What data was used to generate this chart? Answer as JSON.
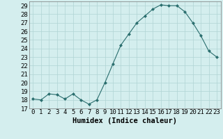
{
  "x": [
    0,
    1,
    2,
    3,
    4,
    5,
    6,
    7,
    8,
    9,
    10,
    11,
    12,
    13,
    14,
    15,
    16,
    17,
    18,
    19,
    20,
    21,
    22,
    23
  ],
  "y": [
    18.1,
    18.0,
    18.7,
    18.6,
    18.1,
    18.7,
    18.0,
    17.5,
    18.0,
    20.0,
    22.2,
    24.4,
    25.7,
    27.0,
    27.8,
    28.6,
    29.1,
    29.0,
    29.0,
    28.3,
    27.0,
    25.5,
    23.7,
    23.0
  ],
  "line_color": "#2a6e6e",
  "marker": "D",
  "marker_size": 2,
  "bg_color": "#d4eeee",
  "grid_color": "#b0d4d4",
  "xlabel": "Humidex (Indice chaleur)",
  "ylim": [
    17,
    29.5
  ],
  "xlim": [
    -0.5,
    23.5
  ],
  "yticks": [
    17,
    18,
    19,
    20,
    21,
    22,
    23,
    24,
    25,
    26,
    27,
    28,
    29
  ],
  "xticks": [
    0,
    1,
    2,
    3,
    4,
    5,
    6,
    7,
    8,
    9,
    10,
    11,
    12,
    13,
    14,
    15,
    16,
    17,
    18,
    19,
    20,
    21,
    22,
    23
  ],
  "tick_fontsize": 6.5,
  "xlabel_fontsize": 7.5
}
